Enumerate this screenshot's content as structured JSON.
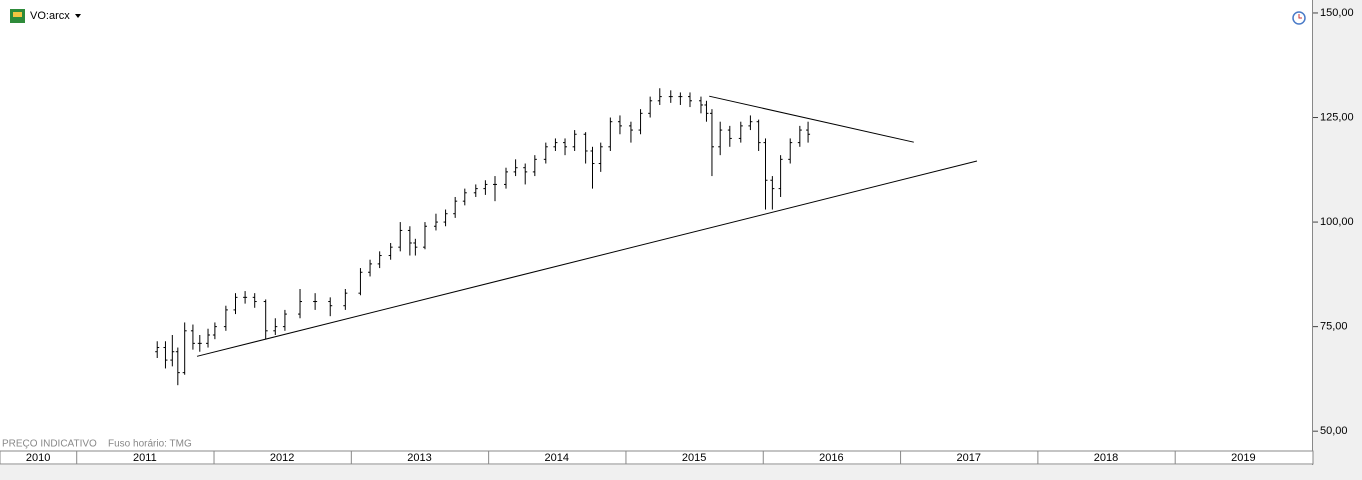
{
  "chart_data": {
    "type": "ohlc",
    "title": "VO:arcx",
    "note": "PREÇO INDICATIVO",
    "timezone": "Fuso horário: TMG",
    "color": "#000000",
    "x": [
      2011.59,
      2011.65,
      2011.7,
      2011.74,
      2011.79,
      2011.85,
      2011.9,
      2011.96,
      2012.01,
      2012.09,
      2012.16,
      2012.23,
      2012.3,
      2012.38,
      2012.45,
      2012.52,
      2012.63,
      2012.74,
      2012.85,
      2012.96,
      2013.07,
      2013.14,
      2013.21,
      2013.29,
      2013.36,
      2013.43,
      2013.47,
      2013.54,
      2013.62,
      2013.69,
      2013.76,
      2013.83,
      2013.91,
      2013.98,
      2014.05,
      2014.13,
      2014.2,
      2014.27,
      2014.34,
      2014.42,
      2014.49,
      2014.56,
      2014.63,
      2014.71,
      2014.76,
      2014.82,
      2014.89,
      2014.96,
      2015.04,
      2015.11,
      2015.18,
      2015.25,
      2015.33,
      2015.4,
      2015.47,
      2015.55,
      2015.59,
      2015.63,
      2015.69,
      2015.76,
      2015.84,
      2015.91,
      2015.97,
      2016.02,
      2016.07,
      2016.13,
      2016.2,
      2016.27,
      2016.33
    ],
    "open": [
      69,
      70,
      67,
      69,
      64,
      74,
      71,
      71,
      73,
      75,
      79,
      82,
      82,
      81,
      74,
      75,
      78,
      81,
      81,
      80,
      83,
      88,
      90,
      92,
      94,
      98,
      95,
      94,
      99,
      100,
      102,
      105,
      107,
      108,
      109,
      109,
      112,
      113,
      112,
      115,
      118,
      119,
      118,
      121,
      117,
      114,
      118,
      124,
      123,
      122,
      126,
      129,
      130,
      130,
      130,
      129,
      128,
      126,
      118,
      122,
      120,
      123,
      124,
      119,
      110,
      108,
      115,
      119,
      122
    ],
    "high": [
      71.5,
      71.5,
      73,
      70,
      76,
      75.5,
      73,
      74.5,
      76,
      80,
      83,
      83.5,
      83,
      81.5,
      77,
      79,
      84,
      83,
      82,
      84,
      89,
      91,
      93,
      95,
      100,
      99,
      96,
      100,
      102,
      103,
      106,
      108,
      109,
      110,
      111,
      113,
      115,
      114,
      116,
      119,
      120,
      120,
      122,
      121.5,
      118,
      119,
      125,
      125.5,
      124,
      127,
      130,
      132,
      131.5,
      131,
      131,
      130,
      129,
      127,
      124,
      123,
      124,
      125.5,
      124.5,
      120,
      111,
      116,
      120,
      123,
      124
    ],
    "low": [
      67.5,
      65,
      65.5,
      61,
      63.5,
      69.5,
      69,
      70,
      72,
      74,
      78,
      80.5,
      79.5,
      72,
      73,
      74,
      77,
      79,
      77.5,
      79,
      82.5,
      87,
      89,
      91,
      93,
      92,
      92,
      93.5,
      98,
      99,
      101,
      104,
      106,
      106.5,
      105,
      108,
      111,
      109,
      111,
      114,
      117,
      116,
      117,
      114,
      108,
      112,
      117,
      121,
      119,
      121,
      125,
      128,
      128.5,
      128,
      127.5,
      126,
      124,
      111,
      116,
      118,
      119,
      122,
      117,
      103,
      103,
      106,
      114,
      118,
      119
    ],
    "close": [
      70,
      67,
      69,
      64,
      74,
      71,
      71,
      73,
      75,
      79,
      82,
      82,
      81,
      74,
      75,
      78,
      81,
      81,
      80,
      83,
      88,
      90,
      92,
      94,
      98,
      95,
      94,
      99,
      100,
      102,
      105,
      107,
      108,
      109,
      109,
      112,
      113,
      112,
      115,
      118,
      119,
      118,
      121,
      117,
      114,
      118,
      124,
      123,
      122,
      126,
      129,
      130,
      130,
      130,
      129,
      128,
      126,
      118,
      122,
      120,
      123,
      124,
      119,
      110,
      108,
      115,
      119,
      122,
      121
    ],
    "trendlines": [
      {
        "x": [
          2011.88,
          2017.56
        ],
        "y": [
          67.9,
          114.6
        ]
      },
      {
        "x": [
          2015.61,
          2017.1
        ],
        "y": [
          130.1,
          119.1
        ]
      }
    ],
    "xlim": [
      2010.445,
      2020
    ],
    "xticks": [
      2010,
      2011,
      2012,
      2013,
      2014,
      2015,
      2016,
      2017,
      2018,
      2019
    ],
    "ylim": [
      45.5,
      153.1
    ],
    "yticks": [
      {
        "value": 50,
        "label": "50,00"
      },
      {
        "value": 75,
        "label": "75,00"
      },
      {
        "value": 100,
        "label": "100,00"
      },
      {
        "value": 125,
        "label": "125,00"
      },
      {
        "value": 150,
        "label": "150,00"
      }
    ]
  }
}
